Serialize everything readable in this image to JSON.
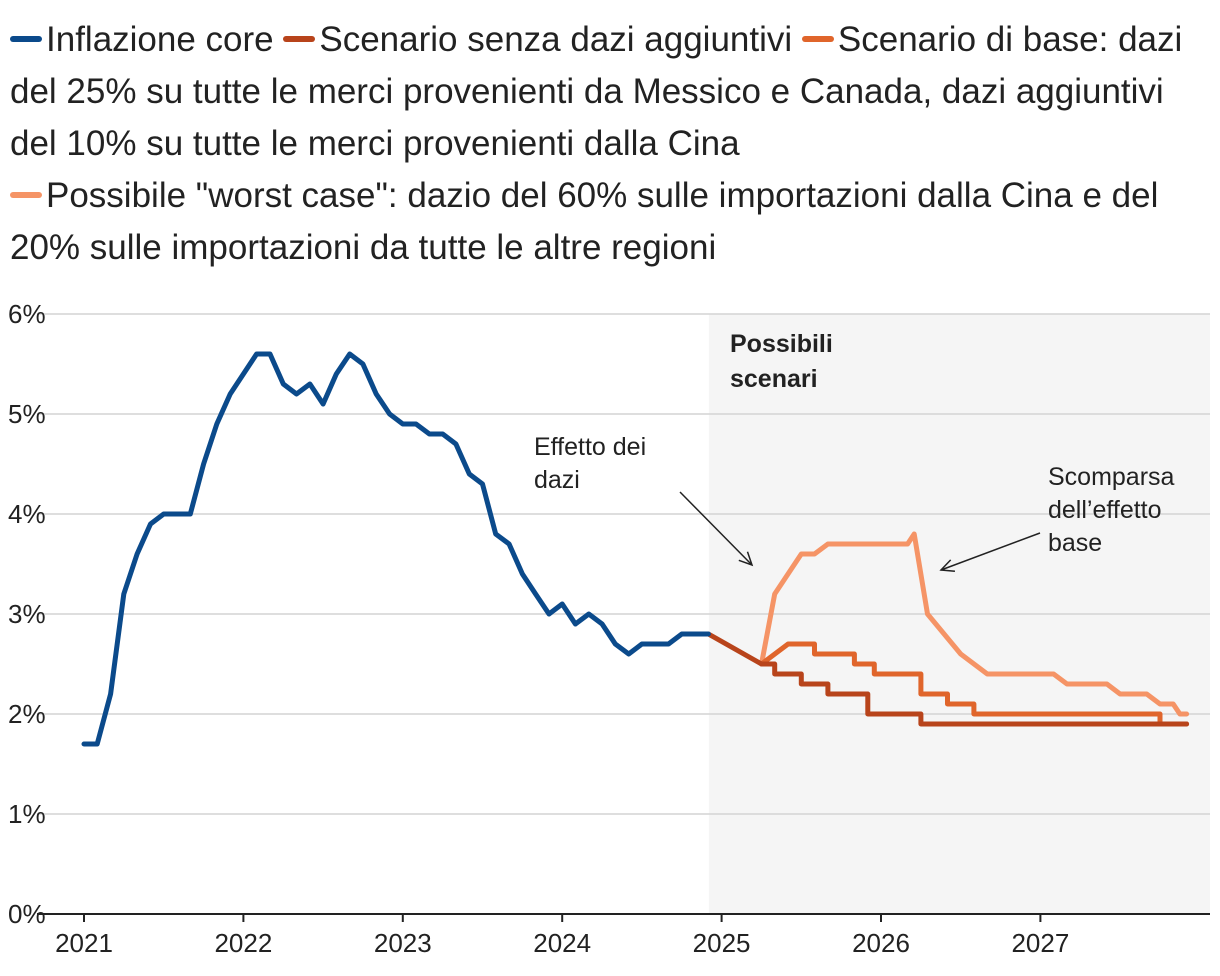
{
  "chart_data": {
    "type": "line",
    "title": "",
    "xlabel": "",
    "ylabel": "",
    "ylim": [
      0,
      6
    ],
    "xlim": [
      2021,
      2028
    ],
    "y_ticks": [
      "0%",
      "1%",
      "2%",
      "3%",
      "4%",
      "5%",
      "6%"
    ],
    "x_ticks": [
      "2021",
      "2022",
      "2023",
      "2024",
      "2025",
      "2026",
      "2027"
    ],
    "grid": true,
    "legend_position": "top",
    "shaded_region": {
      "x_from": 2024.92,
      "x_to": 2028,
      "label_line1": "Possibili",
      "label_line2": "scenari"
    },
    "annotations": [
      {
        "lines": [
          "Effetto dei",
          "dazi"
        ]
      },
      {
        "lines": [
          "Scomparsa",
          "dell’effetto",
          "base"
        ]
      }
    ],
    "series": [
      {
        "name": "Inflazione core",
        "color": "#0b4a8b",
        "step": false,
        "points": [
          [
            2021.0,
            1.7
          ],
          [
            2021.083,
            1.7
          ],
          [
            2021.167,
            2.2
          ],
          [
            2021.25,
            3.2
          ],
          [
            2021.333,
            3.6
          ],
          [
            2021.417,
            3.9
          ],
          [
            2021.5,
            4.0
          ],
          [
            2021.583,
            4.0
          ],
          [
            2021.667,
            4.0
          ],
          [
            2021.75,
            4.5
          ],
          [
            2021.833,
            4.9
          ],
          [
            2021.917,
            5.2
          ],
          [
            2022.0,
            5.4
          ],
          [
            2022.083,
            5.6
          ],
          [
            2022.167,
            5.6
          ],
          [
            2022.25,
            5.3
          ],
          [
            2022.333,
            5.2
          ],
          [
            2022.417,
            5.3
          ],
          [
            2022.5,
            5.1
          ],
          [
            2022.583,
            5.4
          ],
          [
            2022.667,
            5.6
          ],
          [
            2022.75,
            5.5
          ],
          [
            2022.833,
            5.2
          ],
          [
            2022.917,
            5.0
          ],
          [
            2023.0,
            4.9
          ],
          [
            2023.083,
            4.9
          ],
          [
            2023.167,
            4.8
          ],
          [
            2023.25,
            4.8
          ],
          [
            2023.333,
            4.7
          ],
          [
            2023.417,
            4.4
          ],
          [
            2023.5,
            4.3
          ],
          [
            2023.583,
            3.8
          ],
          [
            2023.667,
            3.7
          ],
          [
            2023.75,
            3.4
          ],
          [
            2023.833,
            3.2
          ],
          [
            2023.917,
            3.0
          ],
          [
            2024.0,
            3.1
          ],
          [
            2024.083,
            2.9
          ],
          [
            2024.167,
            3.0
          ],
          [
            2024.25,
            2.9
          ],
          [
            2024.333,
            2.7
          ],
          [
            2024.417,
            2.6
          ],
          [
            2024.5,
            2.7
          ],
          [
            2024.583,
            2.7
          ],
          [
            2024.667,
            2.7
          ],
          [
            2024.75,
            2.8
          ],
          [
            2024.833,
            2.8
          ],
          [
            2024.917,
            2.8
          ]
        ]
      },
      {
        "name": "Scenario senza dazi aggiuntivi",
        "color": "#b8441b",
        "step": true,
        "points": [
          [
            2024.917,
            2.8
          ],
          [
            2025.25,
            2.5
          ],
          [
            2025.333,
            2.4
          ],
          [
            2025.5,
            2.3
          ],
          [
            2025.667,
            2.2
          ],
          [
            2025.917,
            2.0
          ],
          [
            2026.25,
            1.9
          ],
          [
            2026.333,
            1.9
          ],
          [
            2027.917,
            1.9
          ]
        ]
      },
      {
        "name": "Scenario di base: dazi del 25% su tutte le merci provenienti da Messico e Canada, dazi aggiuntivi del 10% su tutte le merci provenienti dalla Cina",
        "color": "#e0652b",
        "step": true,
        "points": [
          [
            2025.25,
            2.5
          ],
          [
            2025.417,
            2.7
          ],
          [
            2025.583,
            2.6
          ],
          [
            2025.833,
            2.5
          ],
          [
            2025.958,
            2.4
          ],
          [
            2026.25,
            2.2
          ],
          [
            2026.417,
            2.1
          ],
          [
            2026.583,
            2.0
          ],
          [
            2027.75,
            1.9
          ],
          [
            2027.917,
            1.9
          ]
        ]
      },
      {
        "name": "Possibile \"worst case\": dazio del 60% sulle importazioni dalla Cina e del 20% sulle importazioni da tutte le altre regioni",
        "color": "#f59466",
        "step": false,
        "points": [
          [
            2025.25,
            2.5
          ],
          [
            2025.333,
            3.2
          ],
          [
            2025.5,
            3.6
          ],
          [
            2025.583,
            3.6
          ],
          [
            2025.667,
            3.7
          ],
          [
            2025.75,
            3.7
          ],
          [
            2026.083,
            3.7
          ],
          [
            2026.167,
            3.7
          ],
          [
            2026.208,
            3.8
          ],
          [
            2026.292,
            3.0
          ],
          [
            2026.5,
            2.6
          ],
          [
            2026.667,
            2.4
          ],
          [
            2026.917,
            2.4
          ],
          [
            2027.083,
            2.4
          ],
          [
            2027.167,
            2.3
          ],
          [
            2027.417,
            2.3
          ],
          [
            2027.5,
            2.2
          ],
          [
            2027.667,
            2.2
          ],
          [
            2027.75,
            2.1
          ],
          [
            2027.833,
            2.1
          ],
          [
            2027.875,
            2.0
          ],
          [
            2027.917,
            2.0
          ]
        ]
      }
    ]
  }
}
